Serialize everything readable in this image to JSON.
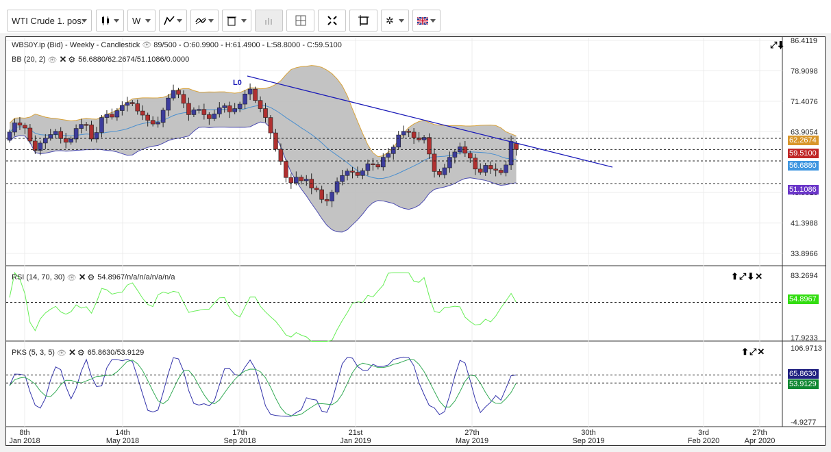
{
  "toolbar": {
    "instrument": "WTI Crude 1. pos.",
    "timeframe": "W",
    "icons": [
      "candlestick-icon",
      "timeframe-selector",
      "drawing-tools-icon",
      "indicators-icon",
      "trash-icon",
      "volume-icon",
      "crosshair-icon",
      "fullscreen-icon",
      "snapshot-icon",
      "settings-icon",
      "language-flag-icon"
    ]
  },
  "price_panel": {
    "legend_main": "WBS0Y.ip (Bid) - Weekly - Candlestick",
    "legend_main_stats": "89/500 - O:60.9900 - H:61.4900 - L:58.8000 - C:59.5100",
    "legend_bb_name": "BB (20, 2)",
    "legend_bb_values": "56.6880/62.2674/51.1086/0.0000",
    "trendline_label": "L0",
    "y_ticks": [
      "86.4119",
      "78.9098",
      "71.4076",
      "63.9054",
      "48.9010",
      "41.3988",
      "33.8966"
    ],
    "tags": {
      "bb_upper": "62.2674",
      "last": "59.5100",
      "bb_mid": "56.6880",
      "bb_lower": "51.1086"
    }
  },
  "rsi_panel": {
    "legend_name": "RSI (14, 70, 30)",
    "legend_values": "54.8967/n/a/n/a/n/a/n/a",
    "y_ticks": [
      "83.2694",
      "17.9233"
    ],
    "tag": "54.8967"
  },
  "pks_panel": {
    "legend_name": "PKS (5, 3, 5)",
    "legend_values": "65.8630/53.9129",
    "y_ticks": [
      "106.9713",
      "-4.9277"
    ],
    "tag_k": "65.8630",
    "tag_d": "53.9129"
  },
  "x_axis": [
    {
      "line1": "8th",
      "line2": "Jan 2018"
    },
    {
      "line1": "14th",
      "line2": "May 2018"
    },
    {
      "line1": "17th",
      "line2": "Sep 2018"
    },
    {
      "line1": "21st",
      "line2": "Jan 2019"
    },
    {
      "line1": "27th",
      "line2": "May 2019"
    },
    {
      "line1": "30th",
      "line2": "Sep 2019"
    },
    {
      "line1": "3rd",
      "line2": "Feb 2020"
    },
    {
      "line1": "27th",
      "line2": "Apr 2020"
    }
  ],
  "colors": {
    "bull": "#3c3c9c",
    "bear": "#b03030",
    "bb_fill": "#bdbdbd",
    "bb_band": "#d9a33a",
    "bb_lower_line": "#4b4bb0",
    "bb_mid": "#4a8fcf",
    "trendline": "#1a1ab8",
    "rsi": "#66ee55",
    "pks_k": "#3333aa",
    "pks_d": "#33aa55",
    "tag_bb_upper": "#d9962a",
    "tag_last": "#c02626",
    "tag_bb_mid": "#3f96e0",
    "tag_bb_lower": "#6a35c9",
    "tag_rsi": "#33dd11",
    "tag_k": "#202080",
    "tag_d": "#118833"
  },
  "chart_data": {
    "type": "candlestick",
    "price_range": [
      33.8966,
      86.4119
    ],
    "closes": [
      63.8,
      66.1,
      65.5,
      64.8,
      61.6,
      59.3,
      61.1,
      62.3,
      63.2,
      64.0,
      62.2,
      61.3,
      62.1,
      64.7,
      65.7,
      65.6,
      62.1,
      63.7,
      67.4,
      68.2,
      67.5,
      69.1,
      70.4,
      71.1,
      70.8,
      69.0,
      68.0,
      66.7,
      65.8,
      66.2,
      69.2,
      72.2,
      74.1,
      73.1,
      70.9,
      68.1,
      69.3,
      69.4,
      68.1,
      67.1,
      68.3,
      69.8,
      70.3,
      68.8,
      69.6,
      70.7,
      73.2,
      74.4,
      71.6,
      69.6,
      67.4,
      63.6,
      59.6,
      56.6,
      52.6,
      51.3,
      52.7,
      51.8,
      52.2,
      50.0,
      49.6,
      47.2,
      46.8,
      49.0,
      51.6,
      53.1,
      54.2,
      53.9,
      53.1,
      54.3,
      56.0,
      55.8,
      55.2,
      57.6,
      58.5,
      60.1,
      63.1,
      64.0,
      63.8,
      62.4,
      61.9,
      62.5,
      58.4,
      54.1,
      53.3,
      55.0,
      57.6,
      58.9,
      60.2,
      58.6,
      57.4,
      54.7,
      53.9,
      55.6,
      54.7,
      54.4,
      53.8,
      55.7,
      61.5,
      59.5
    ],
    "rsi_range": [
      17.9233,
      83.2694
    ],
    "rsi_last": 54.8967,
    "pks_range": [
      -4.9277,
      106.9713
    ],
    "pks_k_last": 65.863,
    "pks_d_last": 53.9129
  }
}
